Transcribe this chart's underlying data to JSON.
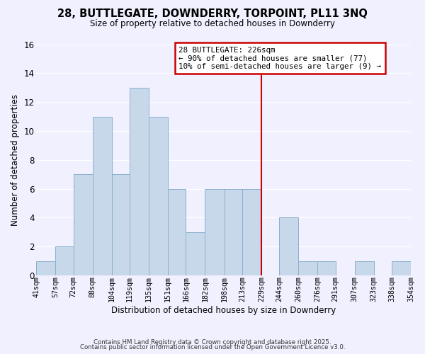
{
  "title": "28, BUTTLEGATE, DOWNDERRY, TORPOINT, PL11 3NQ",
  "subtitle": "Size of property relative to detached houses in Downderry",
  "xlabel": "Distribution of detached houses by size in Downderry",
  "ylabel": "Number of detached properties",
  "bar_color": "#c8d8eb",
  "bar_edge_color": "#8ab0cc",
  "background_color": "#f0f0ff",
  "grid_color": "#ffffff",
  "bins": [
    41,
    57,
    72,
    88,
    104,
    119,
    135,
    151,
    166,
    182,
    198,
    213,
    229,
    244,
    260,
    276,
    291,
    307,
    323,
    338,
    354
  ],
  "counts": [
    1,
    2,
    7,
    11,
    7,
    13,
    11,
    6,
    3,
    6,
    6,
    6,
    0,
    4,
    1,
    1,
    0,
    1,
    0,
    1
  ],
  "tick_labels": [
    "41sqm",
    "57sqm",
    "72sqm",
    "88sqm",
    "104sqm",
    "119sqm",
    "135sqm",
    "151sqm",
    "166sqm",
    "182sqm",
    "198sqm",
    "213sqm",
    "229sqm",
    "244sqm",
    "260sqm",
    "276sqm",
    "291sqm",
    "307sqm",
    "323sqm",
    "338sqm",
    "354sqm"
  ],
  "vline_x": 229,
  "vline_color": "#cc0000",
  "annotation_title": "28 BUTTLEGATE: 226sqm",
  "annotation_line1": "← 90% of detached houses are smaller (77)",
  "annotation_line2": "10% of semi-detached houses are larger (9) →",
  "annotation_box_color": "#ffffff",
  "annotation_box_edge": "#cc0000",
  "ylim": [
    0,
    16
  ],
  "yticks": [
    0,
    2,
    4,
    6,
    8,
    10,
    12,
    14,
    16
  ],
  "footer1": "Contains HM Land Registry data © Crown copyright and database right 2025.",
  "footer2": "Contains public sector information licensed under the Open Government Licence v3.0."
}
